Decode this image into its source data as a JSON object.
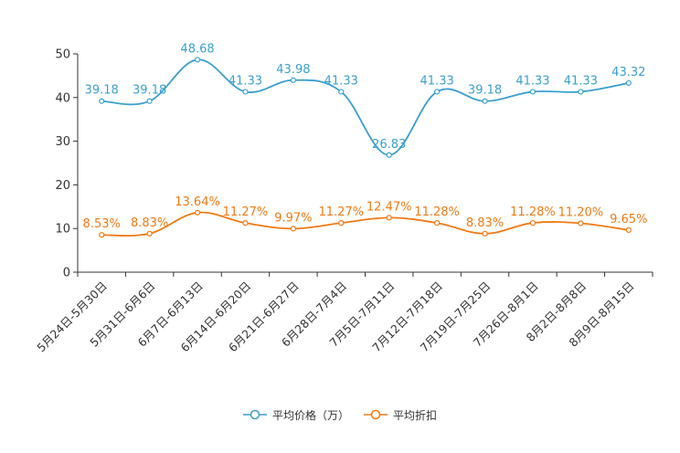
{
  "chart_data": {
    "type": "line",
    "categories": [
      "5月24日-5月30日",
      "5月31日-6月6日",
      "6月7日-6月13日",
      "6月14日-6月20日",
      "6月21日-6月27日",
      "6月28日-7月4日",
      "7月5日-7月11日",
      "7月12日-7月18日",
      "7月19日-7月25日",
      "7月26日-8月1日",
      "8月2日-8月8日",
      "8月9日-8月15日"
    ],
    "series": [
      {
        "name": "平均价格（万）",
        "color": "#3a9fd0",
        "values": [
          39.18,
          39.18,
          48.68,
          41.33,
          43.98,
          41.33,
          26.83,
          41.33,
          39.18,
          41.33,
          41.33,
          43.32
        ],
        "labels": [
          "39.18",
          "39.18",
          "48.68",
          "41.33",
          "43.98",
          "41.33",
          "26.83",
          "41.33",
          "39.18",
          "41.33",
          "41.33",
          "43.32"
        ]
      },
      {
        "name": "平均折扣",
        "color": "#f07a14",
        "values": [
          8.53,
          8.83,
          13.64,
          11.27,
          9.97,
          11.27,
          12.47,
          11.28,
          8.83,
          11.28,
          11.2,
          9.65
        ],
        "labels": [
          "8.53%",
          "8.83%",
          "13.64%",
          "11.27%",
          "9.97%",
          "11.27%",
          "12.47%",
          "11.28%",
          "8.83%",
          "11.28%",
          "11.20%",
          "9.65%"
        ]
      }
    ],
    "yticks": [
      "0",
      "10",
      "20",
      "30",
      "40",
      "50"
    ],
    "ylim": [
      0,
      50
    ],
    "legend_position": "bottom-center",
    "grid": false
  }
}
